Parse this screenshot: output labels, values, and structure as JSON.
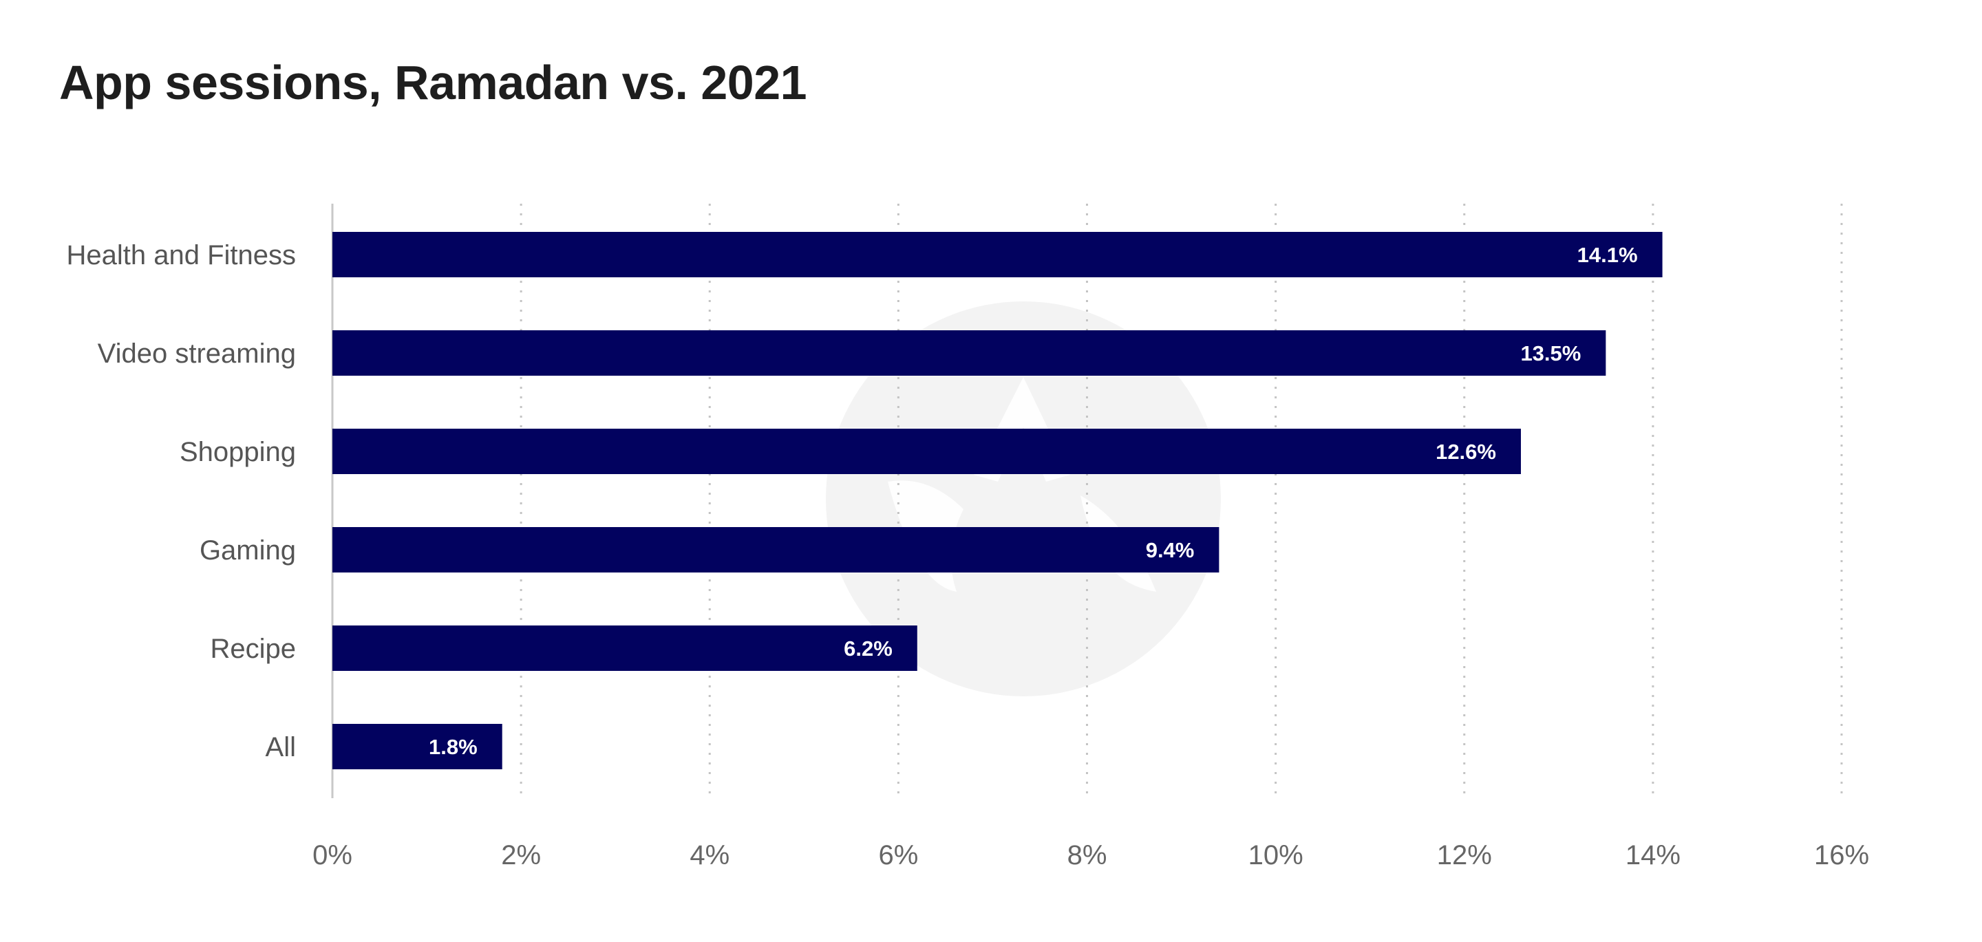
{
  "chart_data": {
    "type": "bar",
    "orientation": "horizontal",
    "title": "App sessions, Ramadan vs. 2021",
    "categories": [
      "Health and Fitness",
      "Video streaming",
      "Shopping",
      "Gaming",
      "Recipe",
      "All"
    ],
    "values": [
      14.1,
      13.5,
      12.6,
      9.4,
      6.2,
      1.8
    ],
    "value_labels": [
      "14.1%",
      "13.5%",
      "12.6%",
      "9.4%",
      "6.2%",
      "1.8%"
    ],
    "x_ticks": [
      0,
      2,
      4,
      6,
      8,
      10,
      12,
      14,
      16
    ],
    "x_tick_labels": [
      "0%",
      "2%",
      "4%",
      "6%",
      "8%",
      "10%",
      "12%",
      "14%",
      "16%"
    ],
    "xlim": [
      0,
      16
    ],
    "xlabel": "",
    "ylabel": "",
    "grid": "vertical-dotted",
    "legend": "none",
    "bar_color": "#02025f",
    "grid_color": "#c4c4c4",
    "watermark_color": "#f3f3f3"
  }
}
